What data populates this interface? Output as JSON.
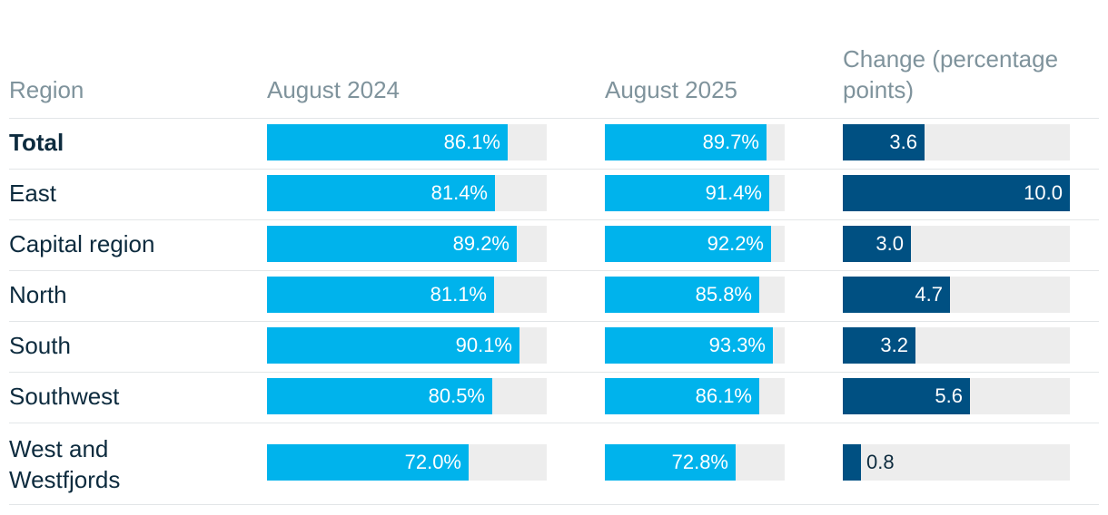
{
  "chart_data": {
    "type": "table",
    "columns": [
      "Region",
      "August 2024",
      "August 2025",
      "Change (percentage points)"
    ],
    "max_values": {
      "pct": 100,
      "change": 10.0
    },
    "rows": [
      {
        "region": "Total",
        "bold": true,
        "aug2024": 86.1,
        "aug2024_label": "86.1%",
        "aug2025": 89.7,
        "aug2025_label": "89.7%",
        "change": 3.6,
        "change_label": "3.6"
      },
      {
        "region": "East",
        "bold": false,
        "aug2024": 81.4,
        "aug2024_label": "81.4%",
        "aug2025": 91.4,
        "aug2025_label": "91.4%",
        "change": 10.0,
        "change_label": "10.0"
      },
      {
        "region": "Capital region",
        "bold": false,
        "aug2024": 89.2,
        "aug2024_label": "89.2%",
        "aug2025": 92.2,
        "aug2025_label": "92.2%",
        "change": 3.0,
        "change_label": "3.0"
      },
      {
        "region": "North",
        "bold": false,
        "aug2024": 81.1,
        "aug2024_label": "81.1%",
        "aug2025": 85.8,
        "aug2025_label": "85.8%",
        "change": 4.7,
        "change_label": "4.7"
      },
      {
        "region": "South",
        "bold": false,
        "aug2024": 90.1,
        "aug2024_label": "90.1%",
        "aug2025": 93.3,
        "aug2025_label": "93.3%",
        "change": 3.2,
        "change_label": "3.2"
      },
      {
        "region": "Southwest",
        "bold": false,
        "aug2024": 80.5,
        "aug2024_label": "80.5%",
        "aug2025": 86.1,
        "aug2025_label": "86.1%",
        "change": 5.6,
        "change_label": "5.6"
      },
      {
        "region": "West and Westfjords",
        "bold": false,
        "aug2024": 72.0,
        "aug2024_label": "72.0%",
        "aug2025": 72.8,
        "aug2025_label": "72.8%",
        "change": 0.8,
        "change_label": "0.8"
      }
    ],
    "colors": {
      "bar_light": "#00b3ec",
      "bar_dark": "#005082",
      "track": "#ededed",
      "header_text": "#7f939c",
      "body_text": "#0d2b3e"
    }
  }
}
